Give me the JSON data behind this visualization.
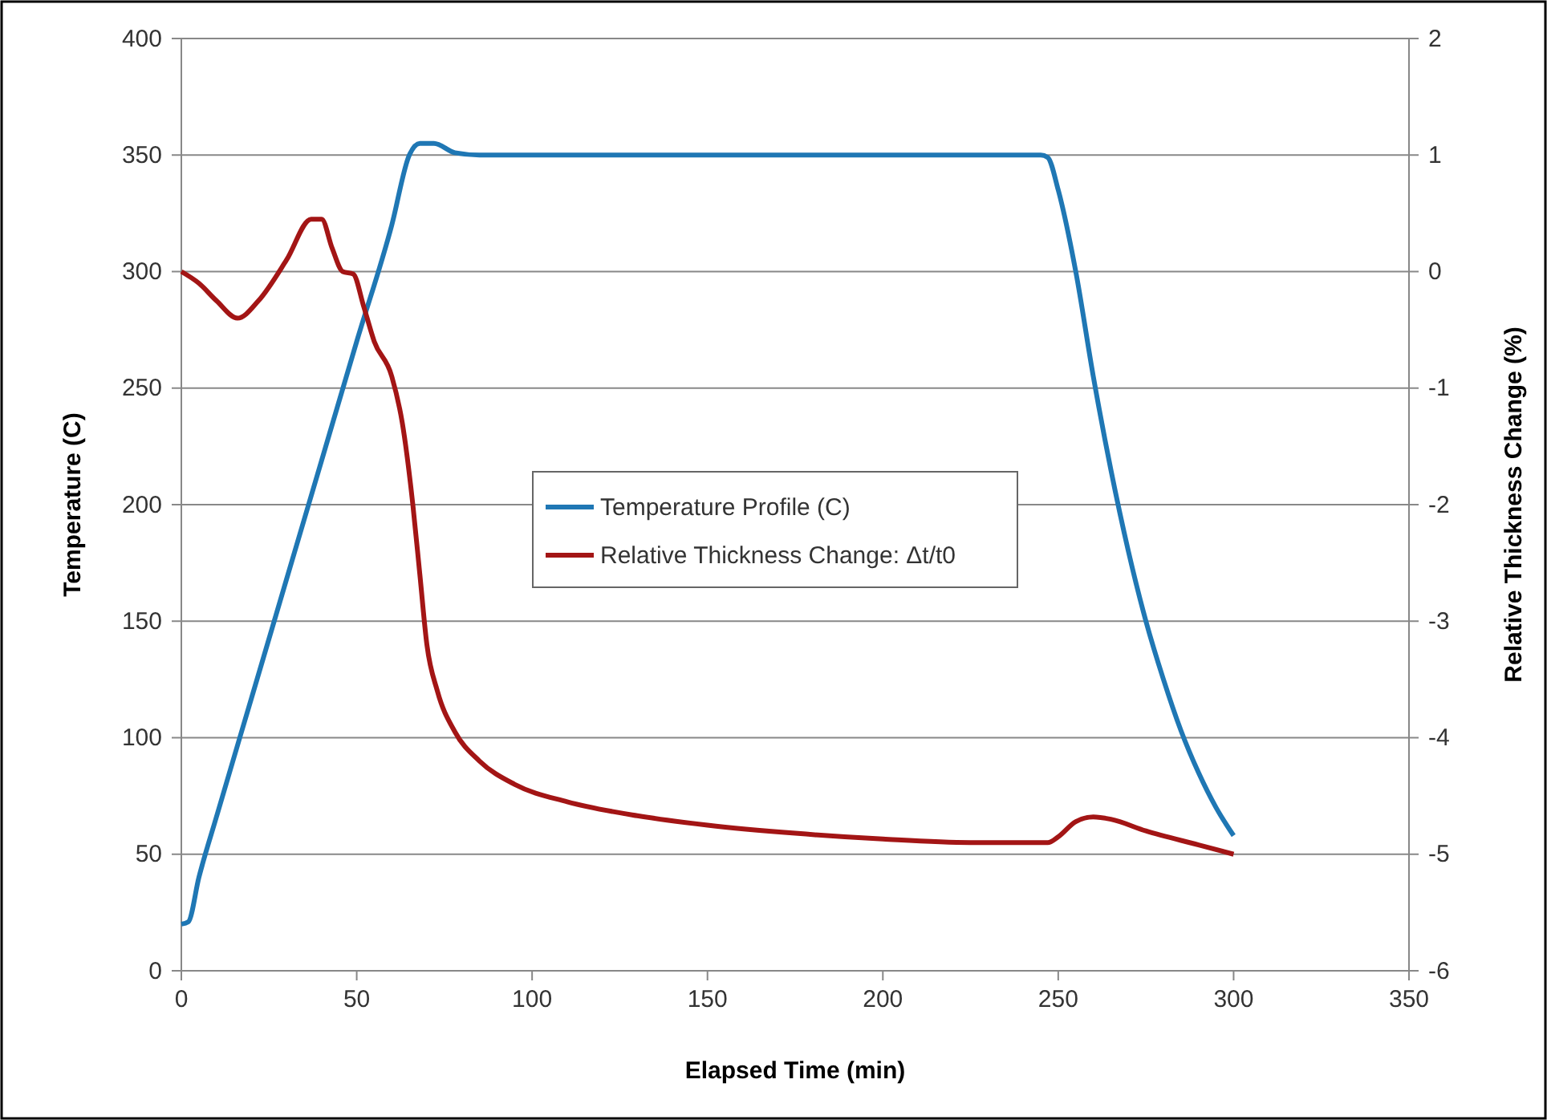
{
  "chart_data": {
    "type": "line",
    "xlabel": "Elapsed Time (min)",
    "ylabel": "Temperature (C)",
    "y2label": "Relative Thickness Change (%)",
    "xlim": [
      0,
      350
    ],
    "xticks": [
      0,
      50,
      100,
      150,
      200,
      250,
      300,
      350
    ],
    "ylim": [
      0,
      400
    ],
    "yticks": [
      0,
      50,
      100,
      150,
      200,
      250,
      300,
      350,
      400
    ],
    "y2lim": [
      -6,
      2
    ],
    "y2ticks": [
      -6,
      -5,
      -4,
      -3,
      -2,
      -1,
      0,
      1,
      2
    ],
    "grid": "y",
    "legend": "center",
    "marker": "none",
    "line_style": "solid",
    "series": [
      {
        "name": "Temperature Profile (C)",
        "color": "#1f77b4",
        "x": [
          0,
          2,
          5,
          10,
          20,
          30,
          40,
          50,
          60,
          65,
          68,
          72,
          78,
          85,
          100,
          150,
          200,
          245,
          247,
          250,
          255,
          260,
          265,
          270,
          275,
          280,
          285,
          290,
          295,
          300
        ],
        "values": [
          20,
          21,
          40,
          66,
          117,
          168,
          219,
          270,
          320,
          350,
          355,
          355,
          351,
          350,
          350,
          350,
          350,
          350,
          349,
          335,
          300,
          255,
          215,
          180,
          150,
          125,
          103,
          85,
          70,
          58
        ]
      },
      {
        "name": "Relative Thickness Change: Δt/t0",
        "color": "#a31515",
        "axis": "y2",
        "x": [
          0,
          5,
          10,
          16,
          22,
          30,
          37,
          40,
          43,
          46,
          49,
          52,
          55,
          60,
          63,
          66,
          68,
          70,
          73,
          78,
          85,
          95,
          110,
          130,
          150,
          175,
          200,
          225,
          247,
          250,
          255,
          260,
          265,
          275,
          290,
          300
        ],
        "values": [
          0,
          -0.1,
          -0.25,
          -0.4,
          -0.25,
          0.1,
          0.45,
          0.45,
          0.2,
          0,
          -0.02,
          -0.3,
          -0.6,
          -0.9,
          -1.3,
          -2,
          -2.6,
          -3.2,
          -3.6,
          -3.95,
          -4.2,
          -4.4,
          -4.55,
          -4.67,
          -4.75,
          -4.82,
          -4.87,
          -4.9,
          -4.9,
          -4.85,
          -4.72,
          -4.68,
          -4.7,
          -4.8,
          -4.92,
          -5
        ]
      }
    ]
  }
}
